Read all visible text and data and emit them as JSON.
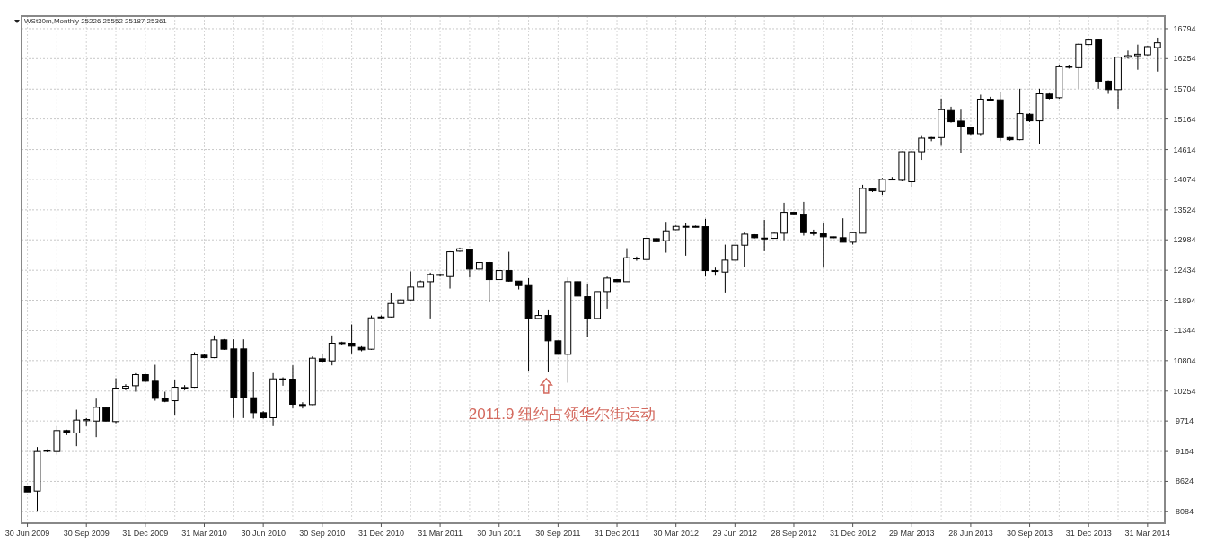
{
  "chart_data": {
    "type": "candlestick",
    "title": "WSt30m,Monthly  25226 25552 25187 25361",
    "color": "#000000",
    "grid": true,
    "annotations": [
      "2011.9  纽约占领华尔街运动"
    ],
    "ylim": [
      7870,
      17020
    ],
    "yticks": [
      8084,
      8624,
      9164,
      9714,
      10254,
      10804,
      11344,
      11894,
      12434,
      12984,
      13524,
      14074,
      14614,
      15164,
      15704,
      16254,
      16794
    ],
    "categories": [
      "30 Jun 2009",
      null,
      null,
      null,
      null,
      null,
      "30 Sep 2009",
      null,
      null,
      null,
      null,
      null,
      "31 Dec 2009",
      null,
      null,
      null,
      null,
      null,
      "31 Mar 2010",
      null,
      null,
      null,
      null,
      null,
      "30 Jun 2010",
      null,
      null,
      null,
      null,
      null,
      "30 Sep 2010",
      null,
      null,
      null,
      null,
      null,
      "31 Dec 2010",
      null,
      null,
      null,
      null,
      null,
      "31 Mar 2011",
      null,
      null,
      null,
      null,
      null,
      "30 Jun 2011",
      null,
      null,
      null,
      null,
      null,
      "30 Sep 2011",
      null,
      null,
      null,
      null,
      null,
      "31 Dec 2011",
      null,
      null,
      null,
      null,
      null,
      "30 Mar 2012",
      null,
      null,
      null,
      null,
      null,
      "29 Jun 2012",
      null,
      null,
      null,
      null,
      null,
      "28 Sep 2012",
      null,
      null,
      null,
      null,
      null,
      "31 Dec 2012",
      null,
      null,
      null,
      null,
      null,
      "29 Mar 2013",
      null,
      null,
      null,
      null,
      null,
      "28 Jun 2013",
      null,
      null,
      null,
      null,
      null,
      "30 Sep 2013",
      null,
      null,
      null,
      null,
      null,
      "31 Dec 2013",
      null,
      null,
      null,
      null,
      null,
      "31 Mar 2014",
      null
    ],
    "ohlc": [
      [
        8526,
        8526,
        8434,
        8434
      ],
      [
        8450,
        9244,
        8094,
        9163
      ],
      [
        9168,
        9201,
        9152,
        9184
      ],
      [
        9163,
        9622,
        9109,
        9541
      ],
      [
        9541,
        9557,
        9460,
        9498
      ],
      [
        9498,
        9918,
        9260,
        9730
      ],
      [
        9719,
        9767,
        9622,
        9740
      ],
      [
        9713,
        10118,
        9422,
        9962
      ],
      [
        9956,
        9962,
        9708,
        9713
      ],
      [
        9703,
        10485,
        9676,
        10307
      ],
      [
        10307,
        10377,
        10269,
        10339
      ],
      [
        10350,
        10577,
        10242,
        10550
      ],
      [
        10550,
        10566,
        10415,
        10431
      ],
      [
        10431,
        10728,
        10080,
        10123
      ],
      [
        10123,
        10242,
        10053,
        10070
      ],
      [
        10080,
        10447,
        9827,
        10323
      ],
      [
        10312,
        10361,
        10269,
        10318
      ],
      [
        10323,
        10955,
        10312,
        10906
      ],
      [
        10901,
        10917,
        10847,
        10857
      ],
      [
        10857,
        11257,
        10847,
        11176
      ],
      [
        11176,
        11192,
        10998,
        11009
      ],
      [
        11014,
        11187,
        9767,
        10134
      ],
      [
        11014,
        11187,
        9767,
        10134
      ],
      [
        10134,
        10593,
        9757,
        9864
      ],
      [
        9864,
        9891,
        9757,
        9773
      ],
      [
        9773,
        10577,
        9622,
        10474
      ],
      [
        10474,
        10501,
        10350,
        10464
      ],
      [
        10469,
        10717,
        9945,
        10016
      ],
      [
        10010,
        10053,
        9940,
        10000
      ],
      [
        10010,
        10879,
        10000,
        10847
      ],
      [
        10836,
        10933,
        10771,
        10793
      ],
      [
        10798,
        11257,
        10717,
        11117
      ],
      [
        11117,
        11144,
        11084,
        11127
      ],
      [
        11117,
        11457,
        10933,
        11063
      ],
      [
        11041,
        11063,
        10971,
        10998
      ],
      [
        11009,
        11618,
        10998,
        11575
      ],
      [
        11580,
        11618,
        11548,
        11591
      ],
      [
        11591,
        12023,
        11581,
        11834
      ],
      [
        11834,
        11915,
        11829,
        11899
      ],
      [
        11899,
        12412,
        11888,
        12131
      ],
      [
        12131,
        12250,
        12131,
        12228
      ],
      [
        12228,
        12390,
        11564,
        12358
      ],
      [
        12347,
        12374,
        12320,
        12358
      ],
      [
        12320,
        12779,
        12104,
        12768
      ],
      [
        12779,
        12843,
        12768,
        12822
      ],
      [
        12806,
        12822,
        12304,
        12455
      ],
      [
        12455,
        12574,
        12455,
        12574
      ],
      [
        12574,
        12585,
        11861,
        12266
      ],
      [
        12266,
        12428,
        12266,
        12428
      ],
      [
        12428,
        12768,
        12228,
        12239
      ],
      [
        12239,
        12239,
        12088,
        12158
      ],
      [
        12158,
        12293,
        10620,
        11564
      ],
      [
        11564,
        11710,
        11564,
        11618
      ],
      [
        11618,
        11726,
        10593,
        11160
      ],
      [
        11160,
        11160,
        10917,
        10917
      ],
      [
        10917,
        12304,
        10404,
        12228
      ],
      [
        12228,
        12228,
        11969,
        11969
      ],
      [
        11958,
        12185,
        11224,
        11564
      ],
      [
        11564,
        12050,
        11564,
        12050
      ],
      [
        12050,
        12320,
        11742,
        12293
      ],
      [
        12266,
        12266,
        12228,
        12228
      ],
      [
        12228,
        12833,
        12228,
        12660
      ],
      [
        12644,
        12682,
        12606,
        12655
      ],
      [
        12628,
        13022,
        12628,
        13011
      ],
      [
        13005,
        13016,
        12940,
        12951
      ],
      [
        12968,
        13308,
        12752,
        13146
      ],
      [
        13167,
        13240,
        13160,
        13227
      ],
      [
        13222,
        13291,
        12698,
        13227
      ],
      [
        13227,
        13240,
        13210,
        13222
      ],
      [
        13221,
        13362,
        12320,
        12428
      ],
      [
        12428,
        12482,
        12336,
        12417
      ],
      [
        12401,
        12897,
        12034,
        12617
      ],
      [
        12617,
        12887,
        12617,
        12887
      ],
      [
        12887,
        13113,
        12498,
        13086
      ],
      [
        13075,
        13086,
        13011,
        13022
      ],
      [
        13016,
        13345,
        12779,
        13011
      ],
      [
        13011,
        13113,
        13011,
        13103
      ],
      [
        13103,
        13653,
        12978,
        13480
      ],
      [
        13480,
        13480,
        13430,
        13437
      ],
      [
        13437,
        13669,
        13060,
        13113
      ],
      [
        13113,
        13167,
        13060,
        13103
      ],
      [
        13092,
        13292,
        12482,
        13038
      ],
      [
        13038,
        13049,
        13006,
        13027
      ],
      [
        13022,
        13373,
        12941,
        12941
      ],
      [
        12941,
        13124,
        12898,
        13113
      ],
      [
        13103,
        13977,
        13103,
        13912
      ],
      [
        13901,
        13923,
        13847,
        13869
      ],
      [
        13858,
        14101,
        13794,
        14074
      ],
      [
        14074,
        14117,
        14058,
        14080
      ],
      [
        14058,
        14580,
        14040,
        14574
      ],
      [
        14032,
        14590,
        13940,
        14574
      ],
      [
        14574,
        14872,
        14428,
        14818
      ],
      [
        14818,
        14840,
        14763,
        14829
      ],
      [
        14829,
        15533,
        14682,
        15332
      ],
      [
        15316,
        15386,
        15100,
        15116
      ],
      [
        15126,
        15332,
        14547,
        15023
      ],
      [
        15018,
        15018,
        14880,
        14899
      ],
      [
        14899,
        15603,
        14872,
        15522
      ],
      [
        15522,
        15565,
        15495,
        15510
      ],
      [
        15511,
        15657,
        14763,
        14829
      ],
      [
        14829,
        14840,
        14770,
        14791
      ],
      [
        14791,
        15711,
        14780,
        15262
      ],
      [
        15251,
        15270,
        15110,
        15132
      ],
      [
        15132,
        15711,
        14720,
        15619
      ],
      [
        15614,
        15630,
        15520,
        15538
      ],
      [
        15549,
        16145,
        15530,
        16107
      ],
      [
        16100,
        16145,
        16074,
        16113
      ],
      [
        16091,
        16530,
        15711,
        16513
      ],
      [
        16508,
        16600,
        16500,
        16589
      ],
      [
        16589,
        16600,
        15711,
        15847
      ],
      [
        15847,
        15860,
        15619,
        15695
      ],
      [
        15695,
        16290,
        15348,
        16280
      ],
      [
        16280,
        16399,
        16253,
        16307
      ],
      [
        16307,
        16507,
        16053,
        16334
      ],
      [
        16323,
        16480,
        16310,
        16470
      ],
      [
        16453,
        16632,
        16020,
        16540
      ]
    ]
  }
}
